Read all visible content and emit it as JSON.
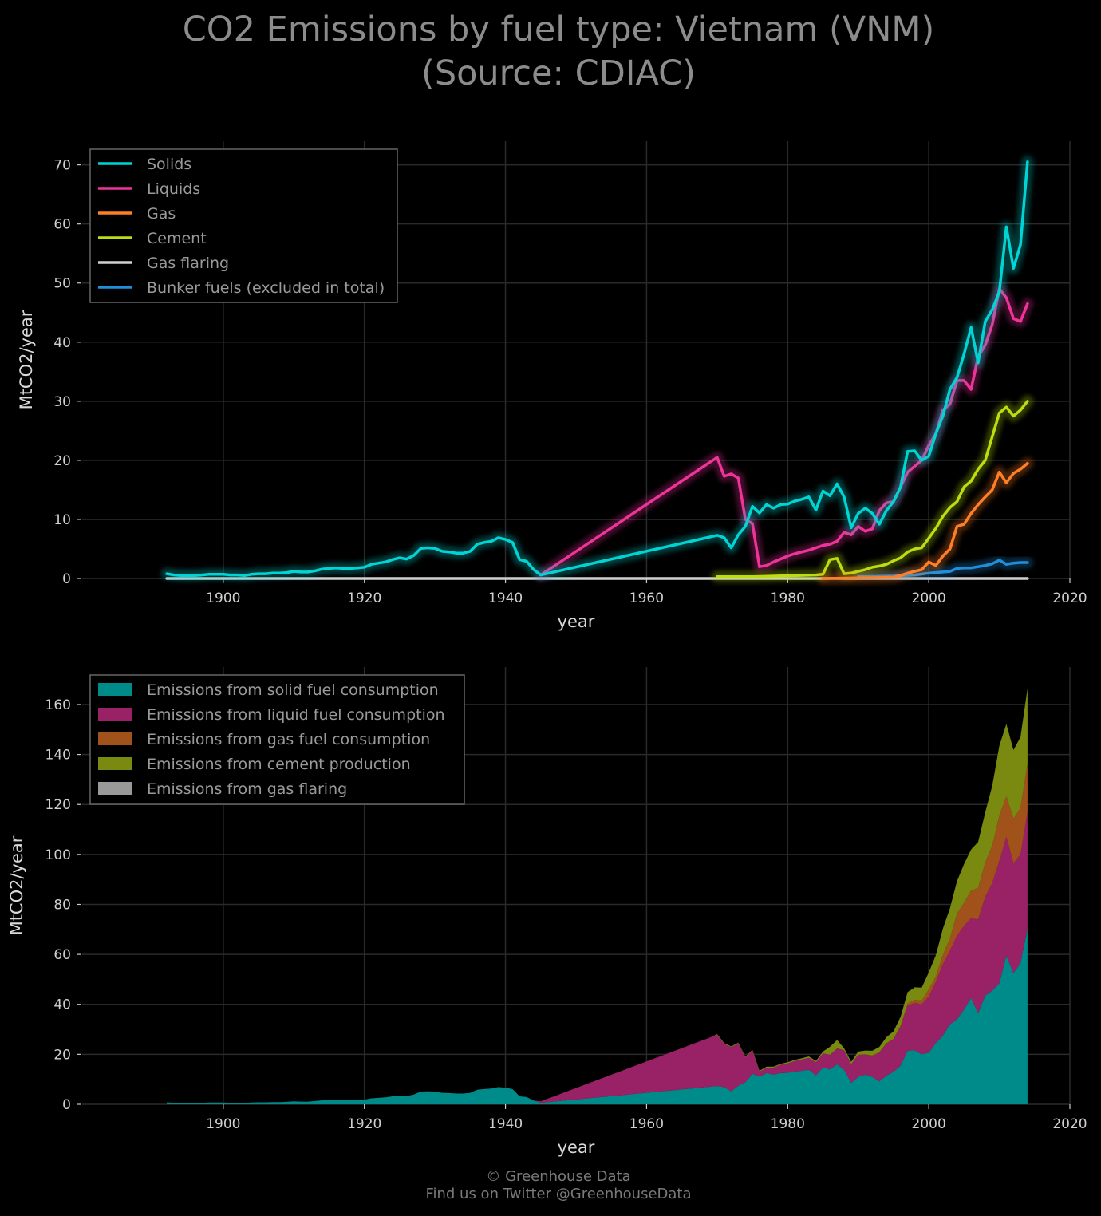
{
  "title": {
    "line1": "CO2 Emissions by fuel type: Vietnam (VNM)",
    "line2": "(Source: CDIAC)"
  },
  "footer": {
    "line1": "© Greenhouse Data",
    "line2": "Find us on Twitter @GreenhouseData"
  },
  "chart_data": [
    {
      "type": "line",
      "xlabel": "year",
      "ylabel": "MtCO2/year",
      "xlim": [
        1880,
        2020
      ],
      "ylim": [
        0,
        74
      ],
      "xticks": [
        1900,
        1920,
        1940,
        1960,
        1980,
        2000,
        2020
      ],
      "yticks": [
        0,
        10,
        20,
        30,
        40,
        50,
        60,
        70
      ],
      "grid": true,
      "legend_position": "top-left",
      "series": [
        {
          "name": "Solids",
          "color": "#00d4d4",
          "points": [
            [
              1892,
              0.8
            ],
            [
              1893,
              0.6
            ],
            [
              1894,
              0.5
            ],
            [
              1895,
              0.5
            ],
            [
              1896,
              0.5
            ],
            [
              1897,
              0.6
            ],
            [
              1898,
              0.7
            ],
            [
              1899,
              0.7
            ],
            [
              1900,
              0.7
            ],
            [
              1901,
              0.6
            ],
            [
              1902,
              0.6
            ],
            [
              1903,
              0.5
            ],
            [
              1904,
              0.7
            ],
            [
              1905,
              0.8
            ],
            [
              1906,
              0.8
            ],
            [
              1907,
              0.9
            ],
            [
              1908,
              0.9
            ],
            [
              1909,
              1.0
            ],
            [
              1910,
              1.2
            ],
            [
              1911,
              1.1
            ],
            [
              1912,
              1.1
            ],
            [
              1913,
              1.3
            ],
            [
              1914,
              1.6
            ],
            [
              1915,
              1.7
            ],
            [
              1916,
              1.8
            ],
            [
              1917,
              1.7
            ],
            [
              1918,
              1.7
            ],
            [
              1919,
              1.8
            ],
            [
              1920,
              1.9
            ],
            [
              1921,
              2.4
            ],
            [
              1922,
              2.6
            ],
            [
              1923,
              2.8
            ],
            [
              1924,
              3.2
            ],
            [
              1925,
              3.5
            ],
            [
              1926,
              3.3
            ],
            [
              1927,
              3.9
            ],
            [
              1928,
              5.1
            ],
            [
              1929,
              5.2
            ],
            [
              1930,
              5.1
            ],
            [
              1931,
              4.6
            ],
            [
              1932,
              4.5
            ],
            [
              1933,
              4.3
            ],
            [
              1934,
              4.3
            ],
            [
              1935,
              4.6
            ],
            [
              1936,
              5.8
            ],
            [
              1937,
              6.1
            ],
            [
              1938,
              6.3
            ],
            [
              1939,
              6.9
            ],
            [
              1940,
              6.6
            ],
            [
              1941,
              6.1
            ],
            [
              1942,
              3.2
            ],
            [
              1943,
              2.9
            ],
            [
              1944,
              1.5
            ],
            [
              1945,
              0.6
            ],
            [
              1970,
              7.3
            ],
            [
              1971,
              6.9
            ],
            [
              1972,
              5.2
            ],
            [
              1973,
              7.4
            ],
            [
              1974,
              8.8
            ],
            [
              1975,
              12.2
            ],
            [
              1976,
              11.1
            ],
            [
              1977,
              12.5
            ],
            [
              1978,
              11.9
            ],
            [
              1979,
              12.5
            ],
            [
              1980,
              12.6
            ],
            [
              1981,
              13.1
            ],
            [
              1982,
              13.4
            ],
            [
              1983,
              13.8
            ],
            [
              1984,
              11.6
            ],
            [
              1985,
              14.8
            ],
            [
              1986,
              14.0
            ],
            [
              1987,
              16.0
            ],
            [
              1988,
              13.8
            ],
            [
              1989,
              8.6
            ],
            [
              1990,
              11.0
            ],
            [
              1991,
              11.9
            ],
            [
              1992,
              11.0
            ],
            [
              1993,
              9.2
            ],
            [
              1994,
              11.5
            ],
            [
              1995,
              13.0
            ],
            [
              1996,
              15.5
            ],
            [
              1997,
              21.5
            ],
            [
              1998,
              21.6
            ],
            [
              1999,
              20.0
            ],
            [
              2000,
              20.7
            ],
            [
              2001,
              24.5
            ],
            [
              2002,
              27.5
            ],
            [
              2003,
              32.0
            ],
            [
              2004,
              34.0
            ],
            [
              2005,
              38.0
            ],
            [
              2006,
              42.5
            ],
            [
              2007,
              36.5
            ],
            [
              2008,
              43.5
            ],
            [
              2009,
              45.5
            ],
            [
              2010,
              48.5
            ],
            [
              2011,
              59.5
            ],
            [
              2012,
              52.5
            ],
            [
              2013,
              56.5
            ],
            [
              2014,
              70.5
            ]
          ]
        },
        {
          "name": "Liquids",
          "color": "#ee3399",
          "points": [
            [
              1945,
              0.6
            ],
            [
              1970,
              20.5
            ],
            [
              1971,
              17.3
            ],
            [
              1972,
              17.7
            ],
            [
              1973,
              17.0
            ],
            [
              1974,
              10.0
            ],
            [
              1975,
              9.3
            ],
            [
              1976,
              2.0
            ],
            [
              1977,
              2.2
            ],
            [
              1978,
              2.8
            ],
            [
              1979,
              3.3
            ],
            [
              1980,
              3.8
            ],
            [
              1981,
              4.2
            ],
            [
              1982,
              4.5
            ],
            [
              1983,
              4.8
            ],
            [
              1984,
              5.2
            ],
            [
              1985,
              5.6
            ],
            [
              1986,
              5.8
            ],
            [
              1987,
              6.3
            ],
            [
              1988,
              7.8
            ],
            [
              1989,
              7.4
            ],
            [
              1990,
              8.8
            ],
            [
              1991,
              8.0
            ],
            [
              1992,
              8.4
            ],
            [
              1993,
              11.5
            ],
            [
              1994,
              12.8
            ],
            [
              1995,
              13.0
            ],
            [
              1996,
              15.5
            ],
            [
              1997,
              18.0
            ],
            [
              1998,
              19.0
            ],
            [
              1999,
              20.0
            ],
            [
              2000,
              22.5
            ],
            [
              2001,
              24.5
            ],
            [
              2002,
              28.5
            ],
            [
              2003,
              29.5
            ],
            [
              2004,
              33.5
            ],
            [
              2005,
              33.5
            ],
            [
              2006,
              32.0
            ],
            [
              2007,
              37.5
            ],
            [
              2008,
              39.5
            ],
            [
              2009,
              43.0
            ],
            [
              2010,
              49.0
            ],
            [
              2011,
              47.5
            ],
            [
              2012,
              44.0
            ],
            [
              2013,
              43.5
            ],
            [
              2014,
              46.5
            ]
          ]
        },
        {
          "name": "Gas",
          "color": "#ff7f27",
          "points": [
            [
              1985,
              0.0
            ],
            [
              1995,
              0.2
            ],
            [
              1996,
              0.5
            ],
            [
              1997,
              0.9
            ],
            [
              1998,
              1.2
            ],
            [
              1999,
              1.5
            ],
            [
              2000,
              2.8
            ],
            [
              2001,
              2.2
            ],
            [
              2002,
              3.8
            ],
            [
              2003,
              5.0
            ],
            [
              2004,
              8.8
            ],
            [
              2005,
              9.2
            ],
            [
              2006,
              11.0
            ],
            [
              2007,
              12.5
            ],
            [
              2008,
              13.8
            ],
            [
              2009,
              15.0
            ],
            [
              2010,
              18.0
            ],
            [
              2011,
              16.2
            ],
            [
              2012,
              17.8
            ],
            [
              2013,
              18.5
            ],
            [
              2014,
              19.5
            ]
          ]
        },
        {
          "name": "Cement",
          "color": "#bbdd11",
          "points": [
            [
              1970,
              0.3
            ],
            [
              1975,
              0.3
            ],
            [
              1984,
              0.6
            ],
            [
              1985,
              0.7
            ],
            [
              1986,
              3.2
            ],
            [
              1987,
              3.4
            ],
            [
              1988,
              0.8
            ],
            [
              1989,
              0.9
            ],
            [
              1990,
              1.2
            ],
            [
              1991,
              1.5
            ],
            [
              1992,
              1.9
            ],
            [
              1993,
              2.1
            ],
            [
              1994,
              2.4
            ],
            [
              1995,
              3.0
            ],
            [
              1996,
              3.5
            ],
            [
              1997,
              4.5
            ],
            [
              1998,
              5.0
            ],
            [
              1999,
              5.2
            ],
            [
              2000,
              6.8
            ],
            [
              2001,
              8.5
            ],
            [
              2002,
              10.5
            ],
            [
              2003,
              12.0
            ],
            [
              2004,
              13.0
            ],
            [
              2005,
              15.5
            ],
            [
              2006,
              16.5
            ],
            [
              2007,
              18.5
            ],
            [
              2008,
              20.0
            ],
            [
              2009,
              24.0
            ],
            [
              2010,
              28.0
            ],
            [
              2011,
              29.0
            ],
            [
              2012,
              27.5
            ],
            [
              2013,
              28.5
            ],
            [
              2014,
              30.0
            ]
          ]
        },
        {
          "name": "Gas flaring",
          "color": "#d0d0d0",
          "points": [
            [
              1892,
              0.0
            ],
            [
              2014,
              0.0
            ]
          ]
        },
        {
          "name": "Bunker fuels (excluded in total)",
          "color": "#1f8fdd",
          "points": [
            [
              1990,
              0.3
            ],
            [
              1995,
              0.4
            ],
            [
              1998,
              0.6
            ],
            [
              2000,
              0.9
            ],
            [
              2001,
              1.0
            ],
            [
              2002,
              1.1
            ],
            [
              2003,
              1.2
            ],
            [
              2004,
              1.7
            ],
            [
              2005,
              1.8
            ],
            [
              2006,
              1.8
            ],
            [
              2007,
              2.0
            ],
            [
              2008,
              2.2
            ],
            [
              2009,
              2.5
            ],
            [
              2010,
              3.1
            ],
            [
              2011,
              2.4
            ],
            [
              2012,
              2.6
            ],
            [
              2013,
              2.7
            ],
            [
              2014,
              2.7
            ]
          ]
        }
      ]
    },
    {
      "type": "area",
      "stacked": true,
      "xlabel": "year",
      "ylabel": "MtCO2/year",
      "xlim": [
        1880,
        2020
      ],
      "ylim": [
        0,
        175
      ],
      "xticks": [
        1900,
        1920,
        1940,
        1960,
        1980,
        2000,
        2020
      ],
      "yticks": [
        0,
        20,
        40,
        60,
        80,
        100,
        120,
        140,
        160
      ],
      "grid": true,
      "legend_position": "top-left",
      "series": [
        {
          "name": "Emissions from solid fuel consumption",
          "color": "#008b8b"
        },
        {
          "name": "Emissions from liquid fuel consumption",
          "color": "#992266"
        },
        {
          "name": "Emissions from gas fuel consumption",
          "color": "#a0521a"
        },
        {
          "name": "Emissions from cement production",
          "color": "#7a8a10"
        },
        {
          "name": "Emissions from gas flaring",
          "color": "#999999"
        }
      ]
    }
  ]
}
